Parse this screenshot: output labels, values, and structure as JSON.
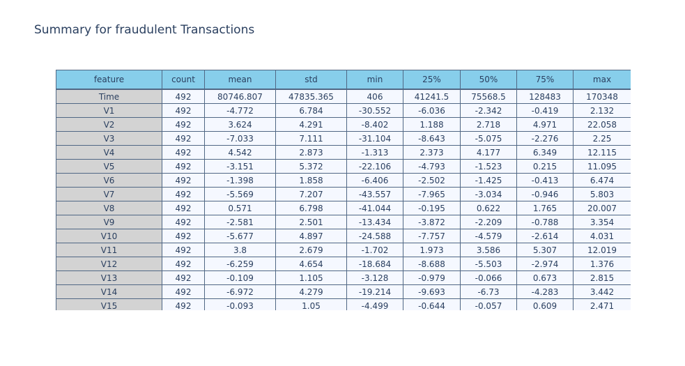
{
  "title": "Summary for fraudulent Transactions",
  "colors": {
    "header_fill": "#87ceeb",
    "feature_fill": "#d3d3d3",
    "cell_fill": "#f5f8ff",
    "line": "#506784",
    "text": "#2a3f5f"
  },
  "chart_data": {
    "type": "table",
    "title": "Summary for fraudulent Transactions",
    "columns": [
      "feature",
      "count",
      "mean",
      "std",
      "min",
      "25%",
      "50%",
      "75%",
      "max"
    ],
    "rows": [
      [
        "Time",
        "492",
        "80746.807",
        "47835.365",
        "406",
        "41241.5",
        "75568.5",
        "128483",
        "170348"
      ],
      [
        "V1",
        "492",
        "-4.772",
        "6.784",
        "-30.552",
        "-6.036",
        "-2.342",
        "-0.419",
        "2.132"
      ],
      [
        "V2",
        "492",
        "3.624",
        "4.291",
        "-8.402",
        "1.188",
        "2.718",
        "4.971",
        "22.058"
      ],
      [
        "V3",
        "492",
        "-7.033",
        "7.111",
        "-31.104",
        "-8.643",
        "-5.075",
        "-2.276",
        "2.25"
      ],
      [
        "V4",
        "492",
        "4.542",
        "2.873",
        "-1.313",
        "2.373",
        "4.177",
        "6.349",
        "12.115"
      ],
      [
        "V5",
        "492",
        "-3.151",
        "5.372",
        "-22.106",
        "-4.793",
        "-1.523",
        "0.215",
        "11.095"
      ],
      [
        "V6",
        "492",
        "-1.398",
        "1.858",
        "-6.406",
        "-2.502",
        "-1.425",
        "-0.413",
        "6.474"
      ],
      [
        "V7",
        "492",
        "-5.569",
        "7.207",
        "-43.557",
        "-7.965",
        "-3.034",
        "-0.946",
        "5.803"
      ],
      [
        "V8",
        "492",
        "0.571",
        "6.798",
        "-41.044",
        "-0.195",
        "0.622",
        "1.765",
        "20.007"
      ],
      [
        "V9",
        "492",
        "-2.581",
        "2.501",
        "-13.434",
        "-3.872",
        "-2.209",
        "-0.788",
        "3.354"
      ],
      [
        "V10",
        "492",
        "-5.677",
        "4.897",
        "-24.588",
        "-7.757",
        "-4.579",
        "-2.614",
        "4.031"
      ],
      [
        "V11",
        "492",
        "3.8",
        "2.679",
        "-1.702",
        "1.973",
        "3.586",
        "5.307",
        "12.019"
      ],
      [
        "V12",
        "492",
        "-6.259",
        "4.654",
        "-18.684",
        "-8.688",
        "-5.503",
        "-2.974",
        "1.376"
      ],
      [
        "V13",
        "492",
        "-0.109",
        "1.105",
        "-3.128",
        "-0.979",
        "-0.066",
        "0.673",
        "2.815"
      ],
      [
        "V14",
        "492",
        "-6.972",
        "4.279",
        "-19.214",
        "-9.693",
        "-6.73",
        "-4.283",
        "3.442"
      ],
      [
        "V15",
        "492",
        "-0.093",
        "1.05",
        "-4.499",
        "-0.644",
        "-0.057",
        "0.609",
        "2.471"
      ]
    ]
  }
}
